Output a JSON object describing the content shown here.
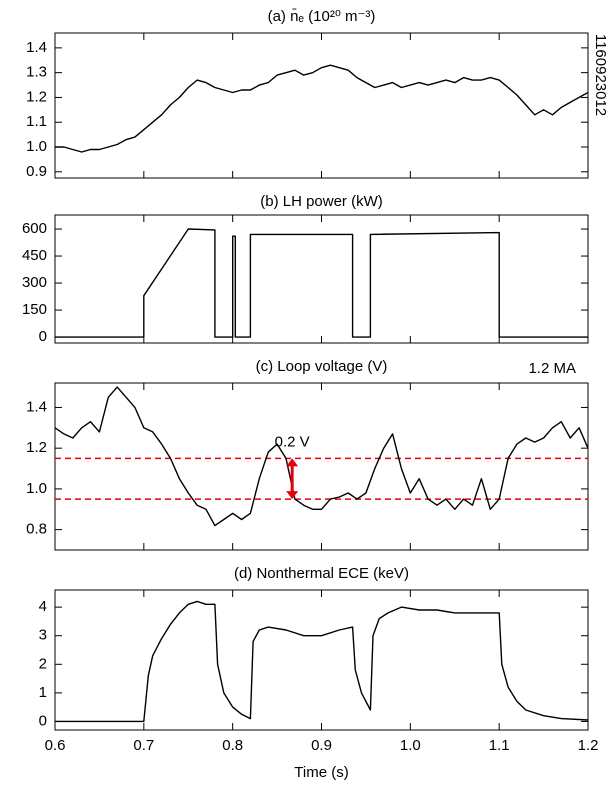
{
  "chart_data": [
    {
      "type": "line",
      "title": "(a) n̄ₑ (10²⁰ m⁻³)",
      "annotations": [
        {
          "text": "1160923012",
          "color": "#000000"
        }
      ],
      "color": "#000000",
      "xlim": [
        0.6,
        1.2
      ],
      "xticks": [
        0.6,
        0.7,
        0.8,
        0.9,
        {
          "value": 1,
          "label": "1.0"
        },
        1.1,
        1.2
      ],
      "ylim": [
        0.875,
        1.46
      ],
      "yticks": [
        0.9,
        {
          "value": 1,
          "label": "1.0"
        },
        1.1,
        1.2,
        1.3,
        1.4
      ],
      "x": [
        0.6,
        0.61,
        0.62,
        0.63,
        0.64,
        0.65,
        0.66,
        0.67,
        0.68,
        0.69,
        0.7,
        0.71,
        0.72,
        0.73,
        0.74,
        0.75,
        0.76,
        0.77,
        0.78,
        0.79,
        0.8,
        0.81,
        0.82,
        0.83,
        0.84,
        0.85,
        0.86,
        0.87,
        0.88,
        0.89,
        0.9,
        0.91,
        0.92,
        0.93,
        0.94,
        0.95,
        0.96,
        0.97,
        0.98,
        0.99,
        1.0,
        1.01,
        1.02,
        1.03,
        1.04,
        1.05,
        1.06,
        1.07,
        1.08,
        1.09,
        1.1,
        1.11,
        1.12,
        1.13,
        1.14,
        1.15,
        1.16,
        1.17,
        1.18,
        1.19,
        1.2
      ],
      "values": [
        1.0,
        1.0,
        0.99,
        0.98,
        0.99,
        0.99,
        1.0,
        1.01,
        1.03,
        1.04,
        1.07,
        1.1,
        1.13,
        1.17,
        1.2,
        1.24,
        1.27,
        1.26,
        1.24,
        1.23,
        1.22,
        1.23,
        1.23,
        1.25,
        1.26,
        1.29,
        1.3,
        1.31,
        1.29,
        1.3,
        1.32,
        1.33,
        1.32,
        1.31,
        1.28,
        1.26,
        1.24,
        1.25,
        1.26,
        1.24,
        1.25,
        1.26,
        1.25,
        1.26,
        1.27,
        1.26,
        1.28,
        1.27,
        1.27,
        1.28,
        1.27,
        1.24,
        1.21,
        1.17,
        1.13,
        1.15,
        1.13,
        1.16,
        1.18,
        1.2,
        1.22
      ]
    },
    {
      "type": "line",
      "title": "(b) LH power (kW)",
      "color": "#000000",
      "xlim": [
        0.6,
        1.2
      ],
      "xticks": [
        0.6,
        0.7,
        0.8,
        0.9,
        {
          "value": 1,
          "label": "1.0"
        },
        1.1,
        1.2
      ],
      "ylim": [
        -33,
        678
      ],
      "yticks": [
        0,
        150,
        300,
        450,
        600
      ],
      "x": [
        0.6,
        0.7,
        0.7,
        0.75,
        0.78,
        0.78,
        0.8,
        0.8,
        0.803,
        0.803,
        0.82,
        0.82,
        0.935,
        0.935,
        0.955,
        0.955,
        1.1,
        1.1,
        1.2
      ],
      "values": [
        0,
        0,
        230,
        600,
        595,
        0,
        0,
        560,
        560,
        0,
        0,
        570,
        570,
        0,
        0,
        570,
        580,
        0,
        0
      ]
    },
    {
      "type": "line",
      "title": "(c) Loop voltage (V)",
      "annotations": [
        {
          "text": "1.2 MA",
          "color": "#000000"
        },
        {
          "text": "0.2 V",
          "color": "#e8000b"
        }
      ],
      "reference_lines": {
        "values": [
          1.15,
          0.95
        ],
        "color": "#e8000b"
      },
      "color": "#000000",
      "xlim": [
        0.6,
        1.2
      ],
      "xticks": [
        0.6,
        0.7,
        0.8,
        0.9,
        {
          "value": 1,
          "label": "1.0"
        },
        1.1,
        1.2
      ],
      "ylim": [
        0.7,
        1.52
      ],
      "yticks": [
        0.8,
        {
          "value": 1,
          "label": "1.0"
        },
        1.2,
        1.4
      ],
      "x": [
        0.6,
        0.61,
        0.62,
        0.63,
        0.64,
        0.65,
        0.66,
        0.67,
        0.68,
        0.69,
        0.7,
        0.71,
        0.72,
        0.73,
        0.74,
        0.75,
        0.76,
        0.77,
        0.78,
        0.79,
        0.8,
        0.81,
        0.82,
        0.83,
        0.84,
        0.85,
        0.86,
        0.87,
        0.88,
        0.89,
        0.9,
        0.91,
        0.92,
        0.93,
        0.94,
        0.95,
        0.96,
        0.97,
        0.98,
        0.99,
        1.0,
        1.01,
        1.02,
        1.03,
        1.04,
        1.05,
        1.06,
        1.07,
        1.08,
        1.09,
        1.1,
        1.11,
        1.12,
        1.13,
        1.14,
        1.15,
        1.16,
        1.17,
        1.18,
        1.19,
        1.2
      ],
      "values": [
        1.3,
        1.27,
        1.25,
        1.3,
        1.33,
        1.28,
        1.45,
        1.5,
        1.45,
        1.4,
        1.3,
        1.28,
        1.22,
        1.15,
        1.05,
        0.98,
        0.92,
        0.9,
        0.82,
        0.85,
        0.88,
        0.85,
        0.88,
        1.05,
        1.18,
        1.22,
        1.15,
        0.95,
        0.92,
        0.9,
        0.9,
        0.95,
        0.96,
        0.98,
        0.95,
        0.98,
        1.1,
        1.2,
        1.27,
        1.1,
        0.98,
        1.05,
        0.95,
        0.92,
        0.95,
        0.9,
        0.95,
        0.92,
        1.05,
        0.9,
        0.95,
        1.15,
        1.22,
        1.25,
        1.23,
        1.25,
        1.3,
        1.33,
        1.25,
        1.3,
        1.2
      ]
    },
    {
      "type": "line",
      "title": "(d) Nonthermal ECE (keV)",
      "xlabel": "Time (s)",
      "color": "#000000",
      "xlim": [
        0.6,
        1.2
      ],
      "xticks": [
        0.6,
        0.7,
        0.8,
        0.9,
        {
          "value": 1,
          "label": "1.0"
        },
        1.1,
        1.2
      ],
      "ylim": [
        -0.3,
        4.6
      ],
      "yticks": [
        0,
        1,
        2,
        3,
        4
      ],
      "x": [
        0.6,
        0.65,
        0.7,
        0.705,
        0.71,
        0.72,
        0.73,
        0.74,
        0.75,
        0.76,
        0.77,
        0.78,
        0.783,
        0.79,
        0.8,
        0.81,
        0.82,
        0.823,
        0.83,
        0.84,
        0.86,
        0.88,
        0.9,
        0.92,
        0.935,
        0.938,
        0.945,
        0.955,
        0.958,
        0.965,
        0.975,
        0.99,
        1.01,
        1.03,
        1.05,
        1.07,
        1.09,
        1.1,
        1.103,
        1.11,
        1.12,
        1.13,
        1.15,
        1.17,
        1.2
      ],
      "values": [
        0,
        0,
        0,
        1.6,
        2.3,
        2.9,
        3.4,
        3.8,
        4.1,
        4.2,
        4.1,
        4.1,
        2.0,
        1.0,
        0.5,
        0.25,
        0.1,
        2.8,
        3.2,
        3.3,
        3.2,
        3.0,
        3.0,
        3.2,
        3.3,
        1.8,
        1.0,
        0.4,
        3.0,
        3.6,
        3.8,
        4.0,
        3.9,
        3.9,
        3.8,
        3.8,
        3.8,
        3.8,
        2.0,
        1.2,
        0.7,
        0.4,
        0.2,
        0.1,
        0.05
      ]
    }
  ]
}
